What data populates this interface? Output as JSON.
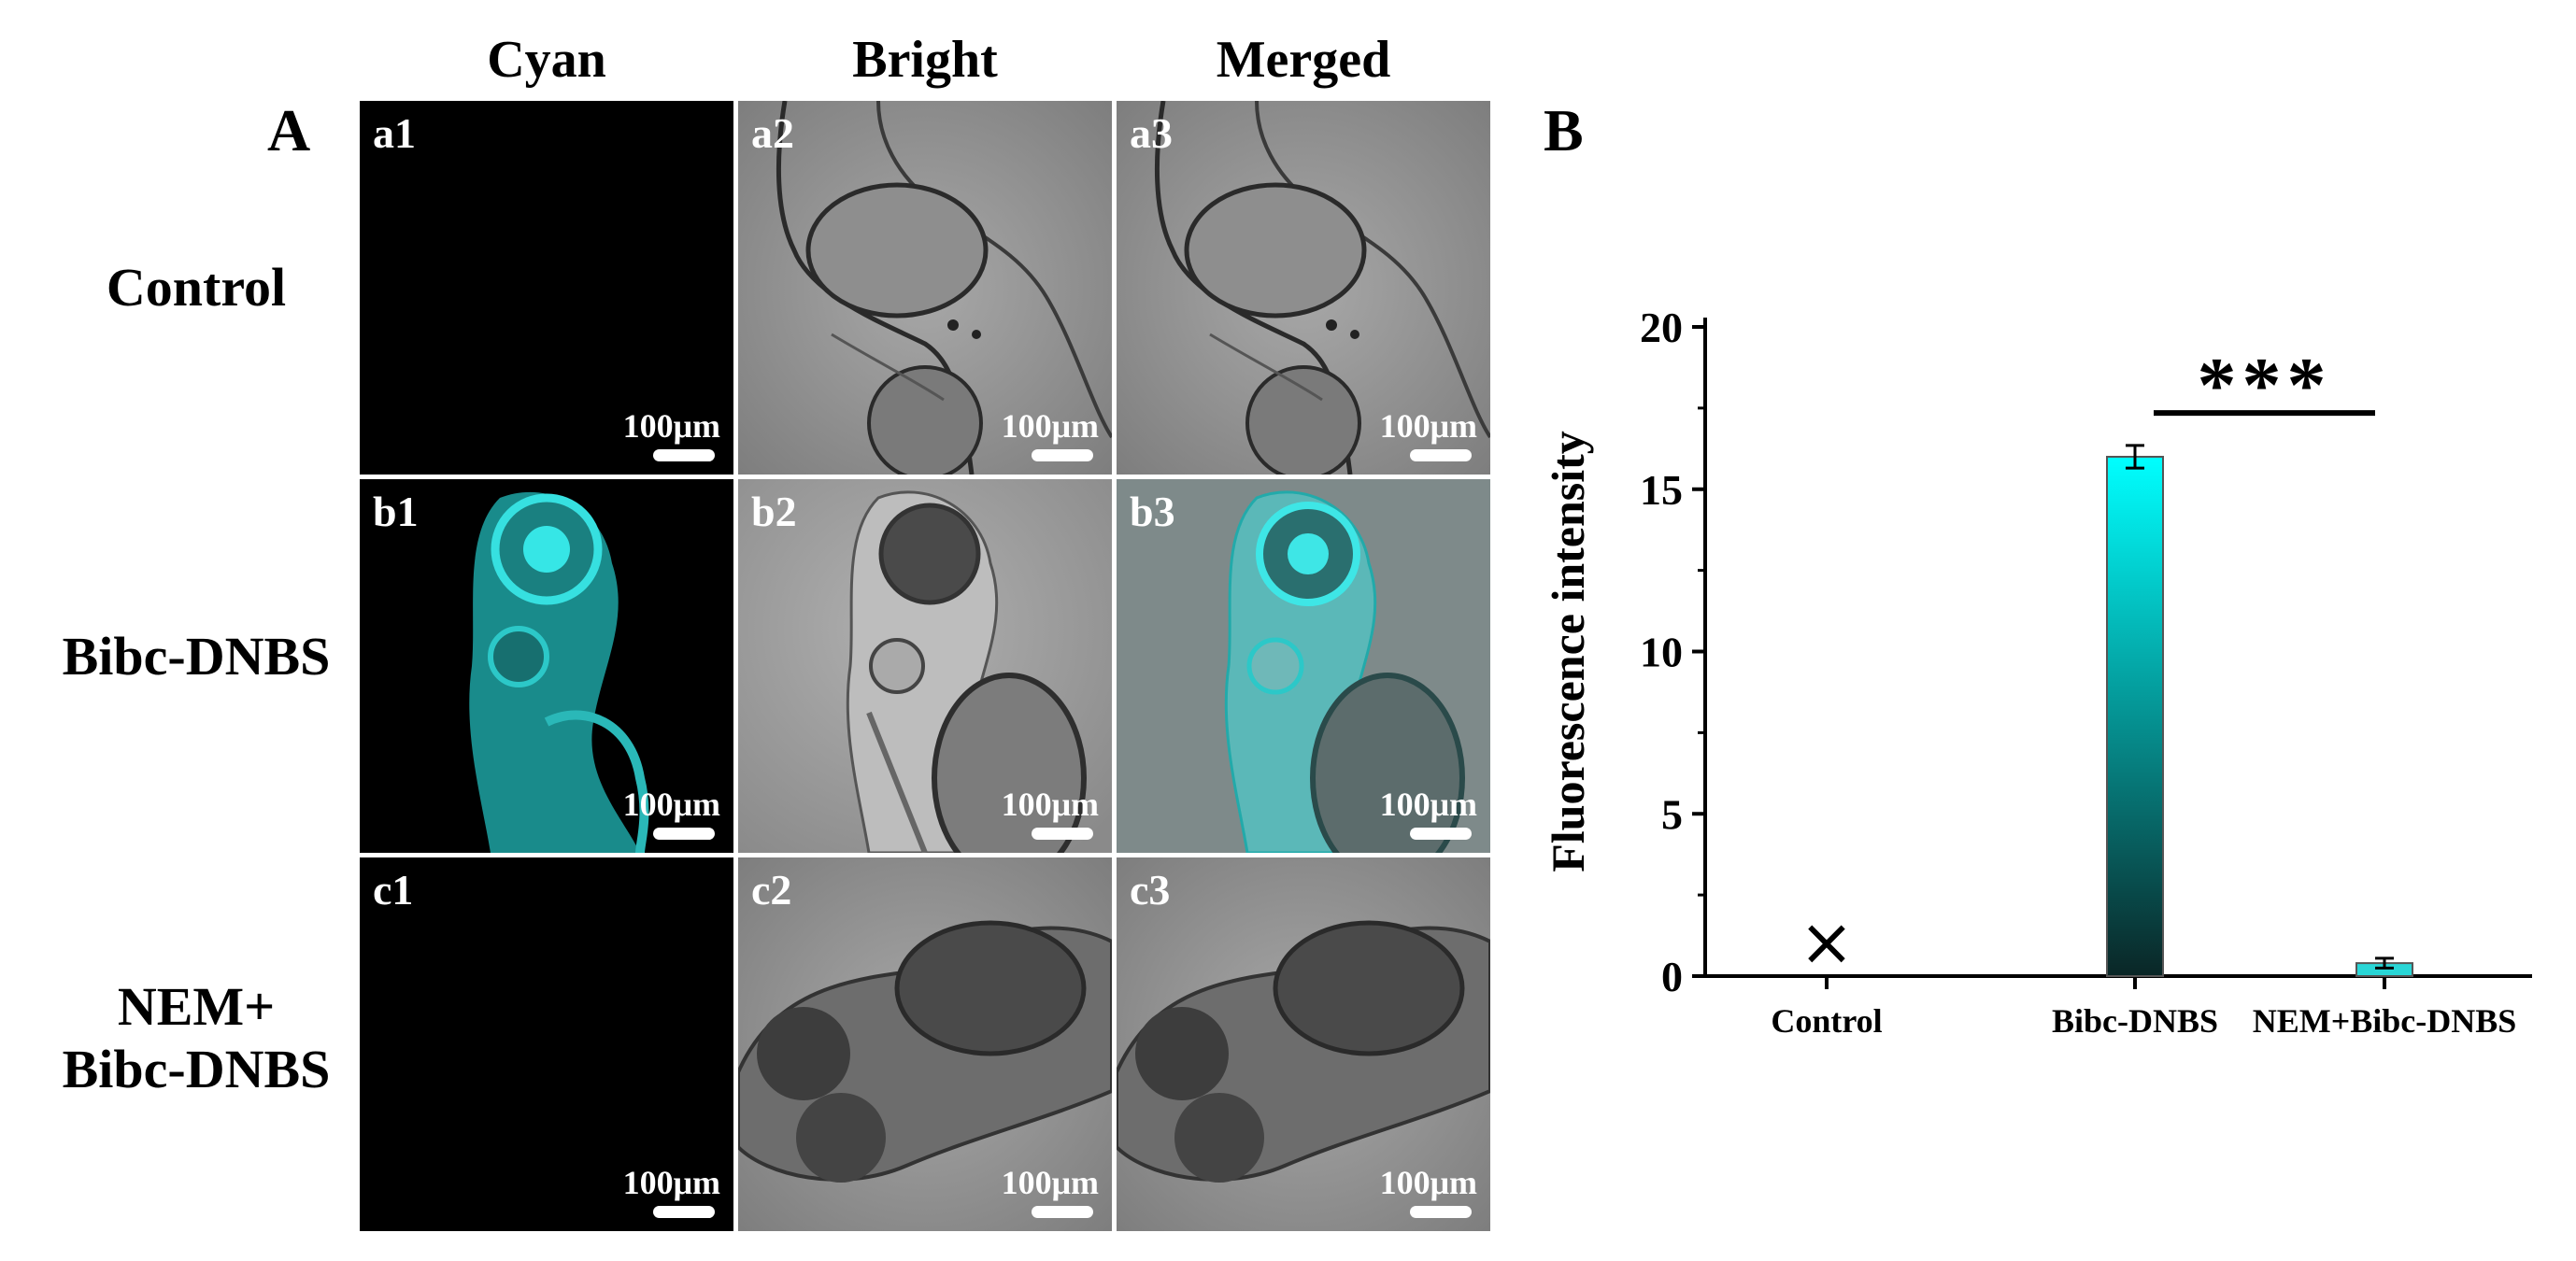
{
  "panels": {
    "a_label": "A",
    "b_label": "B"
  },
  "columns": [
    "Cyan",
    "Bright",
    "Merged"
  ],
  "rows": [
    {
      "label": "Control",
      "tiles": [
        "a1",
        "a2",
        "a3"
      ]
    },
    {
      "label": "Bibc-DNBS",
      "tiles": [
        "b1",
        "b2",
        "b3"
      ]
    },
    {
      "label": "NEM+\nBibc-DNBS",
      "tiles": [
        "c1",
        "c2",
        "c3"
      ]
    }
  ],
  "scale_bar_text": "100μm",
  "colors": {
    "cyan_signal": "#29d6d6",
    "bar_top": "#00ffff",
    "bar_bottom": "#0a2626",
    "axis": "#000000"
  },
  "chart_data": {
    "type": "bar",
    "categories": [
      "Control",
      "Bibc-DNBS",
      "NEM+Bibc-DNBS"
    ],
    "values": [
      0,
      16.0,
      0.4
    ],
    "errors": [
      0,
      0.35,
      0.15
    ],
    "ylabel": "Fluorescence intensity",
    "ylim": [
      0,
      20
    ],
    "yticks": [
      0,
      5,
      10,
      15,
      20
    ],
    "control_marker": "×",
    "significance": {
      "between": [
        1,
        2
      ],
      "label": "***"
    },
    "grid": false,
    "legend": "none"
  }
}
